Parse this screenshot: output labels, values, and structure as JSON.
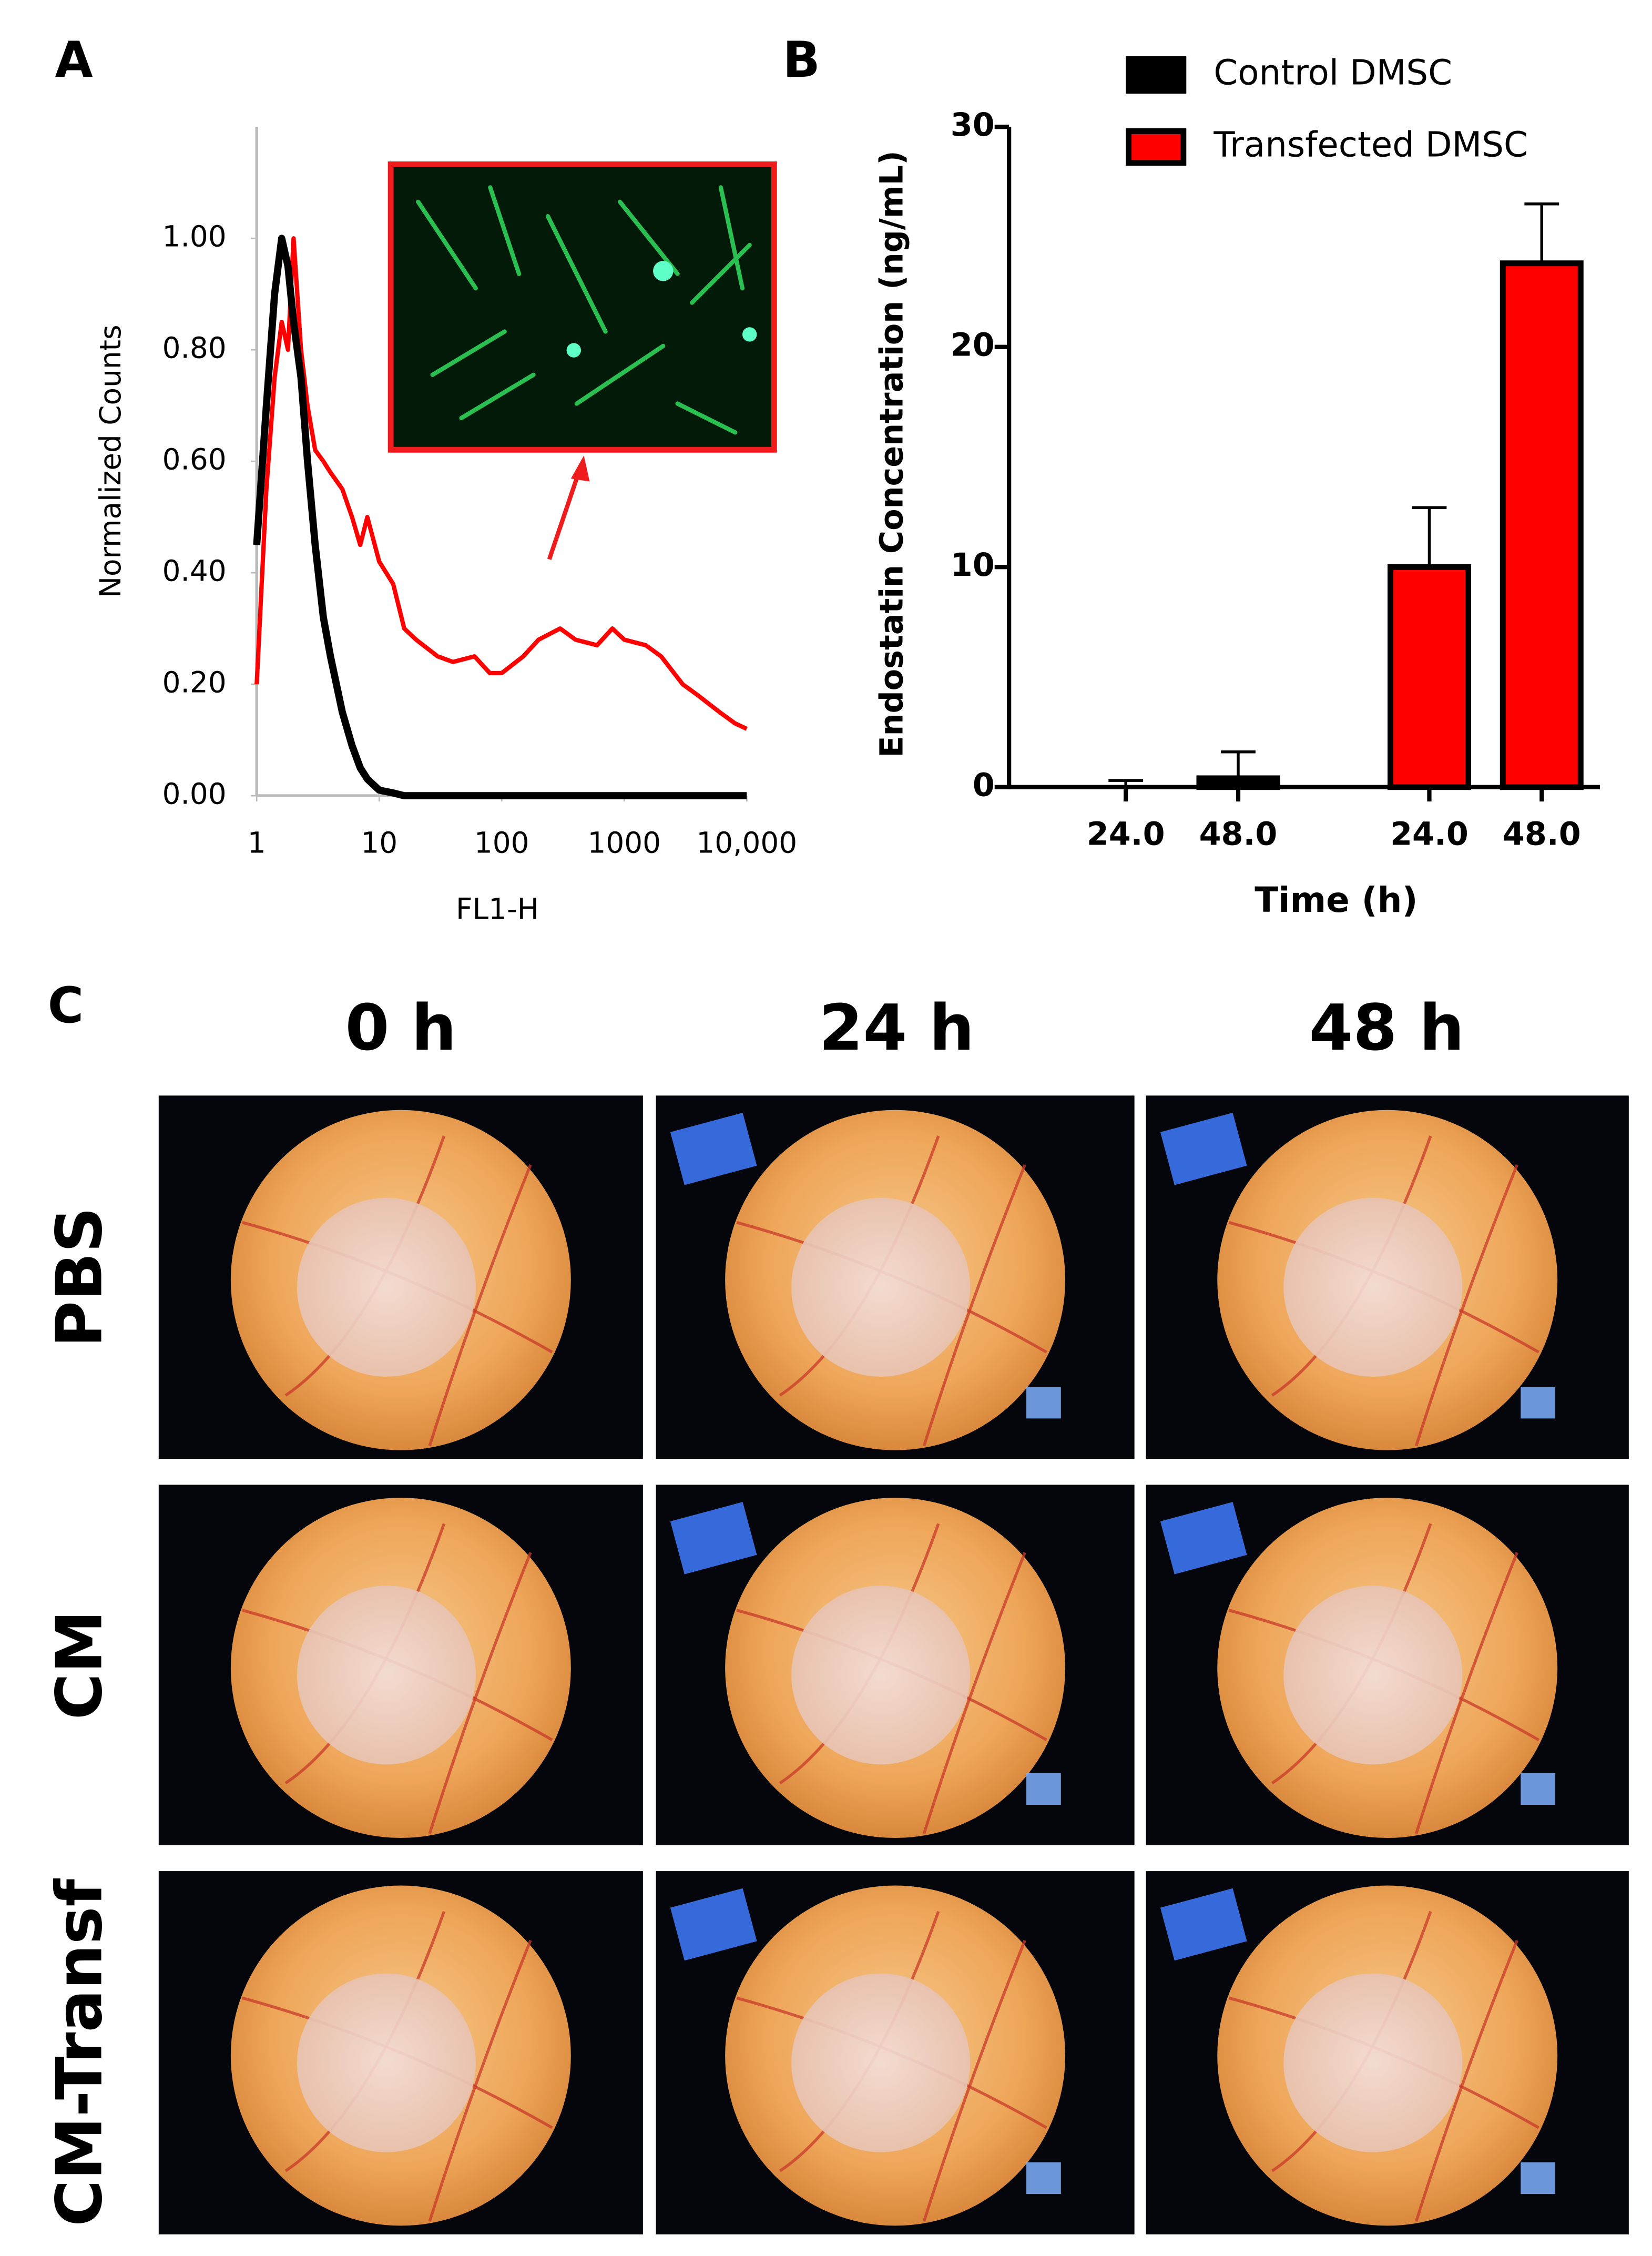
{
  "panels": {
    "a": "A",
    "b": "B",
    "c": "C"
  },
  "chart_data": [
    {
      "type": "line",
      "x_label": "FL1-H",
      "y_label": "Normalized Counts",
      "x_scale": "log",
      "x": [
        1,
        1.2,
        1.4,
        1.6,
        1.8,
        2,
        2.3,
        2.6,
        3,
        3.5,
        4,
        5,
        6,
        7,
        8,
        10,
        13,
        16,
        20,
        30,
        40,
        60,
        80,
        100,
        150,
        200,
        300,
        400,
        600,
        800,
        1000,
        1500,
        2000,
        3000,
        4000,
        6000,
        8000,
        10000
      ],
      "series": [
        {
          "color": "#000000",
          "values": [
            0.45,
            0.7,
            0.9,
            1.0,
            0.95,
            0.85,
            0.75,
            0.6,
            0.45,
            0.32,
            0.25,
            0.15,
            0.09,
            0.05,
            0.03,
            0.01,
            0.005,
            0,
            0,
            0,
            0,
            0,
            0,
            0,
            0,
            0,
            0,
            0,
            0,
            0,
            0,
            0,
            0,
            0,
            0,
            0,
            0,
            0
          ]
        },
        {
          "color": "#ff0000",
          "values": [
            0.2,
            0.55,
            0.75,
            0.85,
            0.8,
            1.0,
            0.8,
            0.7,
            0.62,
            0.6,
            0.58,
            0.55,
            0.5,
            0.45,
            0.5,
            0.42,
            0.38,
            0.3,
            0.28,
            0.25,
            0.24,
            0.25,
            0.22,
            0.22,
            0.25,
            0.28,
            0.3,
            0.28,
            0.27,
            0.3,
            0.28,
            0.27,
            0.25,
            0.2,
            0.18,
            0.15,
            0.13,
            0.12
          ]
        }
      ],
      "xlim": [
        1,
        10000
      ],
      "xticks": [
        1,
        10,
        100,
        1000,
        {
          "value": 10000,
          "label": "10,000"
        }
      ],
      "ylim": [
        0,
        1.2
      ],
      "yticks": [
        {
          "value": 0,
          "label": "0.00"
        },
        {
          "value": 0.2,
          "label": "0.20"
        },
        {
          "value": 0.4,
          "label": "0.40"
        },
        {
          "value": 0.6,
          "label": "0.60"
        },
        {
          "value": 0.8,
          "label": "0.80"
        },
        {
          "value": 1.0,
          "label": "1.00"
        }
      ]
    },
    {
      "type": "bar",
      "x_label": "Time (h)",
      "y_label": "Endostatin Concentration (ng/mL)",
      "categories": [
        "24.0",
        "48.0",
        "24.0",
        "48.0"
      ],
      "series": [
        {
          "name": "Control DMSC",
          "color": "#000000",
          "values": [
            0,
            0.4,
            null,
            null
          ],
          "errors": [
            0.3,
            1.2,
            null,
            null
          ]
        },
        {
          "name": "Transfected DMSC",
          "color": "#ff0000",
          "values": [
            null,
            null,
            10,
            23.8
          ],
          "errors": [
            null,
            null,
            2.7,
            2.7
          ]
        }
      ],
      "ylim": [
        0,
        30
      ],
      "yticks": [
        0,
        10,
        20,
        30
      ],
      "legend": "top-right"
    }
  ],
  "photo_grid": {
    "columns": [
      "0 h",
      "24 h",
      "48 h"
    ],
    "rows": [
      "PBS",
      "CM",
      "CM-Transf"
    ]
  }
}
